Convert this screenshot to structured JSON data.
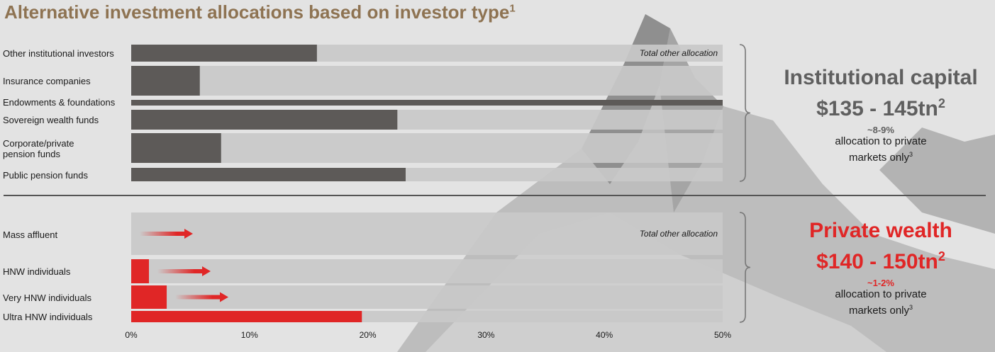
{
  "title": "Alternative investment allocations based on investor type",
  "title_sup": "1",
  "colors": {
    "institutional": "#5d5a58",
    "private": "#e02626",
    "track": "#c9c9c9",
    "title": "#8e7352"
  },
  "chart_data": {
    "type": "bar",
    "orientation": "horizontal",
    "title": "Alternative investment allocations based on investor type",
    "xlim": [
      0,
      50
    ],
    "x_ticks": [
      "0%",
      "10%",
      "20%",
      "30%",
      "40%",
      "50%"
    ],
    "annotation_total": "Total other allocation",
    "groups": [
      {
        "name": "Institutional capital",
        "rows": [
          {
            "label": "Other institutional investors",
            "value": 15.7
          },
          {
            "label": "Insurance companies",
            "value": 5.8
          },
          {
            "label": "Endowments & foundations",
            "value": 50
          },
          {
            "label": "Sovereign wealth funds",
            "value": 22.5
          },
          {
            "label": "Corporate/private pension funds",
            "value": 7.6
          },
          {
            "label": "Public pension funds",
            "value": 23.2
          }
        ]
      },
      {
        "name": "Private wealth",
        "rows": [
          {
            "label": "Mass affluent",
            "value": 0,
            "growth_arrow": true
          },
          {
            "label": "HNW individuals",
            "value": 1.5,
            "growth_arrow": true
          },
          {
            "label": "Very HNW individuals",
            "value": 3.0,
            "growth_arrow": true
          },
          {
            "label": "Ultra HNW individuals",
            "value": 19.5
          }
        ]
      }
    ]
  },
  "labels": {
    "other_institutional": "Other institutional investors",
    "insurance": "Insurance companies",
    "endowments": "Endowments & foundations",
    "sovereign": "Sovereign wealth funds",
    "corporate_l1": "Corporate/private",
    "corporate_l2": "pension funds",
    "public_pension": "Public pension funds",
    "mass_affluent": "Mass affluent",
    "hnw": "HNW individuals",
    "vhnw": "Very HNW individuals",
    "uhnw": "Ultra HNW individuals",
    "total_other": "Total other allocation"
  },
  "institutional": {
    "heading": "Institutional capital",
    "amount": "$135 - 145tn",
    "amount_sup": "2",
    "pct": "~8-9%",
    "note_l1": "allocation to private",
    "note_l2": "markets only",
    "note_sup": "3"
  },
  "private": {
    "heading": "Private wealth",
    "amount": "$140 - 150tn",
    "amount_sup": "2",
    "pct": "~1-2%",
    "note_l1": "allocation to private",
    "note_l2": "markets only",
    "note_sup": "3"
  }
}
